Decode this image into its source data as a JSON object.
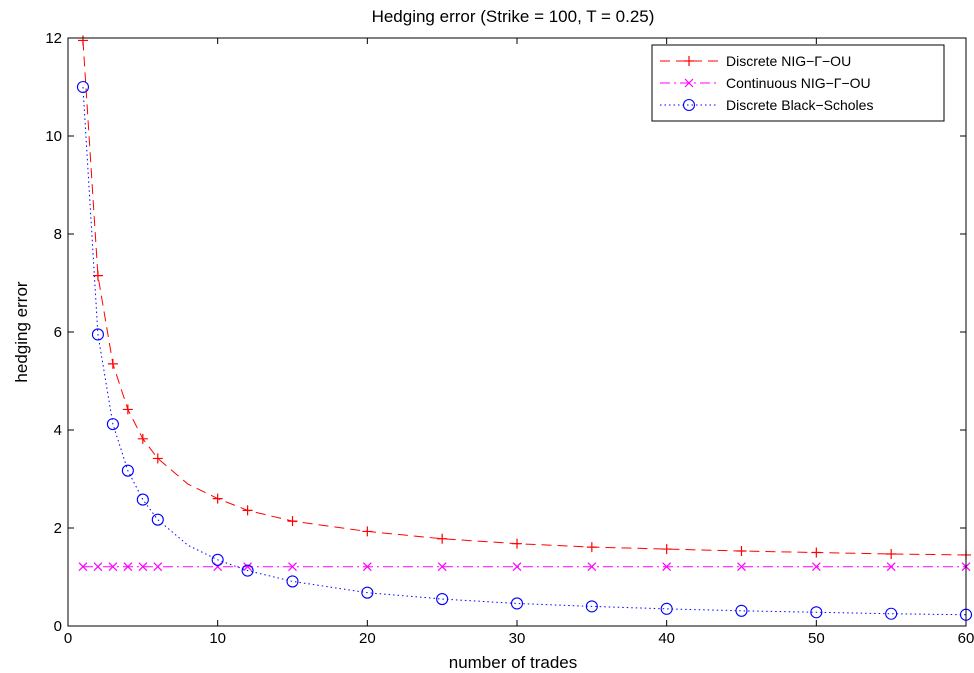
{
  "chart_data": {
    "type": "line",
    "title": "Hedging error  (Strike = 100, T = 0.25)",
    "xlabel": "number of trades",
    "ylabel": "hedging error",
    "xlim": [
      0,
      60
    ],
    "ylim": [
      0,
      12
    ],
    "xticks": [
      0,
      10,
      20,
      30,
      40,
      50,
      60
    ],
    "yticks": [
      0,
      2,
      4,
      6,
      8,
      10,
      12
    ],
    "grid": false,
    "legend_position": "top-right",
    "series": [
      {
        "name": "Discrete NIG−Γ−OU",
        "color": "#ff0000",
        "line_style": "dashed",
        "marker": "plus",
        "marker_x": [
          1,
          2,
          3,
          4,
          5,
          6,
          10,
          12,
          15,
          20,
          25,
          30,
          35,
          40,
          45,
          50,
          55,
          60
        ],
        "x": [
          1,
          2,
          3,
          4,
          5,
          6,
          8,
          10,
          12,
          15,
          20,
          25,
          30,
          35,
          40,
          45,
          50,
          55,
          60
        ],
        "values": [
          11.95,
          7.15,
          5.35,
          4.42,
          3.82,
          3.42,
          2.9,
          2.6,
          2.36,
          2.14,
          1.93,
          1.78,
          1.68,
          1.61,
          1.57,
          1.53,
          1.5,
          1.47,
          1.45
        ]
      },
      {
        "name": "Continuous NIG−Γ−OU",
        "color": "#ff00ff",
        "line_style": "dashdot",
        "marker": "cross",
        "marker_x": [
          1,
          2,
          3,
          4,
          5,
          6,
          10,
          12,
          15,
          20,
          25,
          30,
          35,
          40,
          45,
          50,
          55,
          60
        ],
        "x": [
          1,
          60
        ],
        "values": [
          1.21,
          1.21
        ]
      },
      {
        "name": "Discrete Black−Scholes",
        "color": "#0000ff",
        "line_style": "dotted",
        "marker": "circle",
        "marker_x": [
          1,
          2,
          3,
          4,
          5,
          6,
          10,
          12,
          15,
          20,
          25,
          30,
          35,
          40,
          45,
          50,
          55,
          60
        ],
        "x": [
          1,
          2,
          3,
          4,
          5,
          6,
          8,
          10,
          12,
          15,
          20,
          25,
          30,
          35,
          40,
          45,
          50,
          55,
          60
        ],
        "values": [
          11.0,
          5.95,
          4.12,
          3.17,
          2.58,
          2.17,
          1.65,
          1.35,
          1.13,
          0.91,
          0.68,
          0.55,
          0.46,
          0.4,
          0.35,
          0.31,
          0.28,
          0.25,
          0.23
        ]
      }
    ]
  }
}
